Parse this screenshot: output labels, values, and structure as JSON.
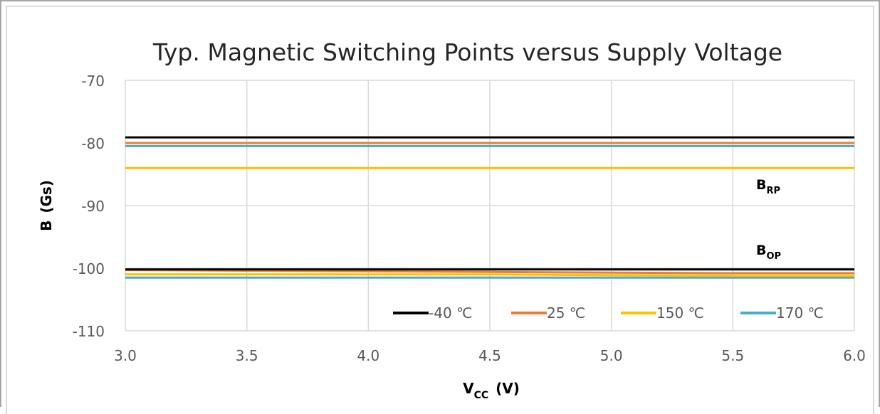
{
  "chart_data": {
    "type": "line",
    "title": "Typ. Magnetic Switching Points versus Supply Voltage",
    "xlabel": "V",
    "xlabel_sub": "CC",
    "xlabel_unit": "(V)",
    "ylabel": "B",
    "ylabel_unit": "(Gs)",
    "xlim": [
      3.0,
      6.0
    ],
    "ylim": [
      -110,
      -70
    ],
    "x_ticks": [
      "3.0",
      "3.5",
      "4.0",
      "4.5",
      "5.0",
      "5.5",
      "6.0"
    ],
    "y_ticks": [
      "-70",
      "-80",
      "-90",
      "-100",
      "-110"
    ],
    "grid": true,
    "legend_position": "bottom-right",
    "annotations": [
      {
        "main": "B",
        "sub": "RP"
      },
      {
        "main": "B",
        "sub": "OP"
      }
    ],
    "x": [
      3.0,
      3.5,
      4.0,
      4.5,
      5.0,
      5.5,
      6.0
    ],
    "series": [
      {
        "name": "-40 ℃",
        "color": "#000000",
        "group": "BRP",
        "values": [
          -79.1,
          -79.1,
          -79.1,
          -79.1,
          -79.1,
          -79.1,
          -79.1
        ]
      },
      {
        "name": "25 ℃",
        "color": "#ed7d31",
        "group": "BRP",
        "values": [
          -80.0,
          -80.0,
          -80.0,
          -80.0,
          -80.0,
          -80.0,
          -80.0
        ]
      },
      {
        "name": "150 ℃",
        "color": "#ffc000",
        "group": "BRP",
        "values": [
          -84.0,
          -84.0,
          -84.0,
          -84.0,
          -84.0,
          -84.0,
          -84.0
        ]
      },
      {
        "name": "170 ℃",
        "color": "#4bacc6",
        "group": "BRP",
        "values": [
          -80.5,
          -80.5,
          -80.5,
          -80.5,
          -80.5,
          -80.5,
          -80.5
        ]
      },
      {
        "name": "-40 ℃",
        "color": "#000000",
        "group": "BOP",
        "values": [
          -100.2,
          -100.2,
          -100.2,
          -100.2,
          -100.2,
          -100.2,
          -100.2
        ]
      },
      {
        "name": "25 ℃",
        "color": "#ed7d31",
        "group": "BOP",
        "values": [
          -100.3,
          -100.4,
          -100.5,
          -100.6,
          -100.7,
          -100.8,
          -100.8
        ]
      },
      {
        "name": "150 ℃",
        "color": "#ffc000",
        "group": "BOP",
        "values": [
          -101.0,
          -101.0,
          -101.0,
          -101.0,
          -101.1,
          -101.2,
          -101.2
        ]
      },
      {
        "name": "170 ℃",
        "color": "#4bacc6",
        "group": "BOP",
        "values": [
          -101.5,
          -101.5,
          -101.5,
          -101.5,
          -101.5,
          -101.5,
          -101.5
        ]
      }
    ],
    "legend": [
      {
        "name": "-40 ℃",
        "color": "#000000"
      },
      {
        "name": "25 ℃",
        "color": "#ed7d31"
      },
      {
        "name": "150 ℃",
        "color": "#ffc000"
      },
      {
        "name": "170 ℃",
        "color": "#4bacc6"
      }
    ]
  }
}
